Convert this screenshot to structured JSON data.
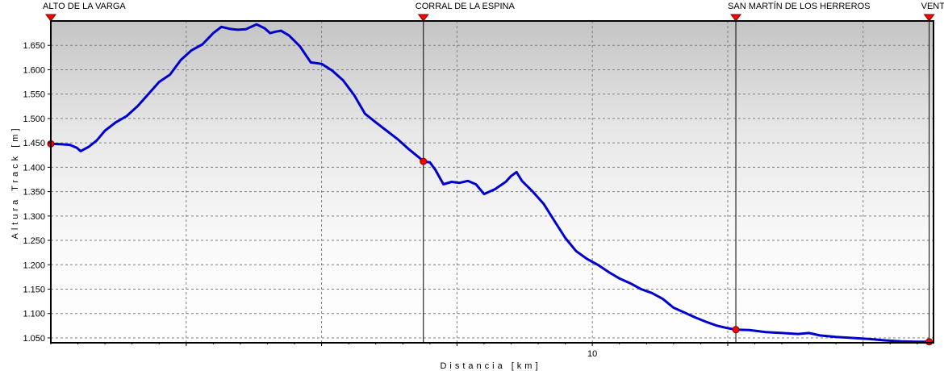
{
  "chart_data": {
    "type": "line",
    "title": "",
    "xlabel": "Distancia  [km]",
    "ylabel": "Altura Track  [m]",
    "xlim": [
      0,
      16.3
    ],
    "ylim": [
      1040,
      1700
    ],
    "x_ticks": [
      {
        "value": 10,
        "label": "10"
      }
    ],
    "y_ticks": [
      {
        "value": 1650,
        "label": "1.650"
      },
      {
        "value": 1600,
        "label": "1.600"
      },
      {
        "value": 1550,
        "label": "1.550"
      },
      {
        "value": 1500,
        "label": "1.500"
      },
      {
        "value": 1450,
        "label": "1.450"
      },
      {
        "value": 1400,
        "label": "1.400"
      },
      {
        "value": 1350,
        "label": "1.350"
      },
      {
        "value": 1300,
        "label": "1.300"
      },
      {
        "value": 1250,
        "label": "1.250"
      },
      {
        "value": 1200,
        "label": "1.200"
      },
      {
        "value": 1150,
        "label": "1.150"
      },
      {
        "value": 1100,
        "label": "1.100"
      },
      {
        "value": 1050,
        "label": "1.050"
      }
    ],
    "grid": true,
    "line_color": "#0000cc",
    "waypoint_color": "#ff0000",
    "waypoints": [
      {
        "name": "ALTO DE LA VARGA",
        "x": 0.0,
        "y": 1448
      },
      {
        "name": "CORRAL DE LA ESPINA",
        "x": 6.88,
        "y": 1412
      },
      {
        "name": "SAN MARTÍN DE LOS HERREROS",
        "x": 12.65,
        "y": 1067
      },
      {
        "name": "VENT",
        "x": 16.22,
        "y": 1042
      }
    ],
    "series": [
      {
        "x": [
          0.0,
          0.2,
          0.35,
          0.48,
          0.55,
          0.7,
          0.85,
          1.0,
          1.2,
          1.4,
          1.6,
          1.8,
          2.0,
          2.2,
          2.4,
          2.6,
          2.8,
          3.0,
          3.15,
          3.3,
          3.45,
          3.6,
          3.8,
          3.95,
          4.05,
          4.15,
          4.25,
          4.4,
          4.6,
          4.8,
          5.0,
          5.2,
          5.4,
          5.6,
          5.8,
          6.0,
          6.2,
          6.4,
          6.6,
          6.8,
          6.88,
          7.0,
          7.1,
          7.25,
          7.4,
          7.55,
          7.7,
          7.85,
          8.0,
          8.2,
          8.4,
          8.5,
          8.6,
          8.7,
          8.9,
          9.1,
          9.3,
          9.5,
          9.7,
          9.9,
          10.1,
          10.3,
          10.5,
          10.7,
          10.9,
          11.1,
          11.3,
          11.5,
          11.7,
          11.9,
          12.1,
          12.3,
          12.5,
          12.65,
          12.9,
          13.2,
          13.5,
          13.8,
          14.0,
          14.2,
          14.5,
          14.8,
          15.1,
          15.4,
          15.7,
          16.0,
          16.22
        ],
        "y": [
          1448,
          1447,
          1446,
          1440,
          1433,
          1442,
          1455,
          1475,
          1492,
          1505,
          1525,
          1550,
          1575,
          1590,
          1620,
          1640,
          1652,
          1675,
          1688,
          1684,
          1682,
          1683,
          1693,
          1685,
          1675,
          1678,
          1680,
          1670,
          1648,
          1615,
          1612,
          1598,
          1578,
          1548,
          1510,
          1492,
          1475,
          1458,
          1438,
          1420,
          1412,
          1410,
          1395,
          1365,
          1370,
          1368,
          1372,
          1365,
          1345,
          1355,
          1370,
          1382,
          1390,
          1372,
          1350,
          1325,
          1290,
          1255,
          1228,
          1212,
          1200,
          1185,
          1172,
          1162,
          1150,
          1142,
          1130,
          1112,
          1102,
          1092,
          1083,
          1075,
          1070,
          1067,
          1066,
          1062,
          1060,
          1058,
          1060,
          1055,
          1052,
          1050,
          1048,
          1045,
          1043,
          1042,
          1042
        ]
      }
    ]
  }
}
